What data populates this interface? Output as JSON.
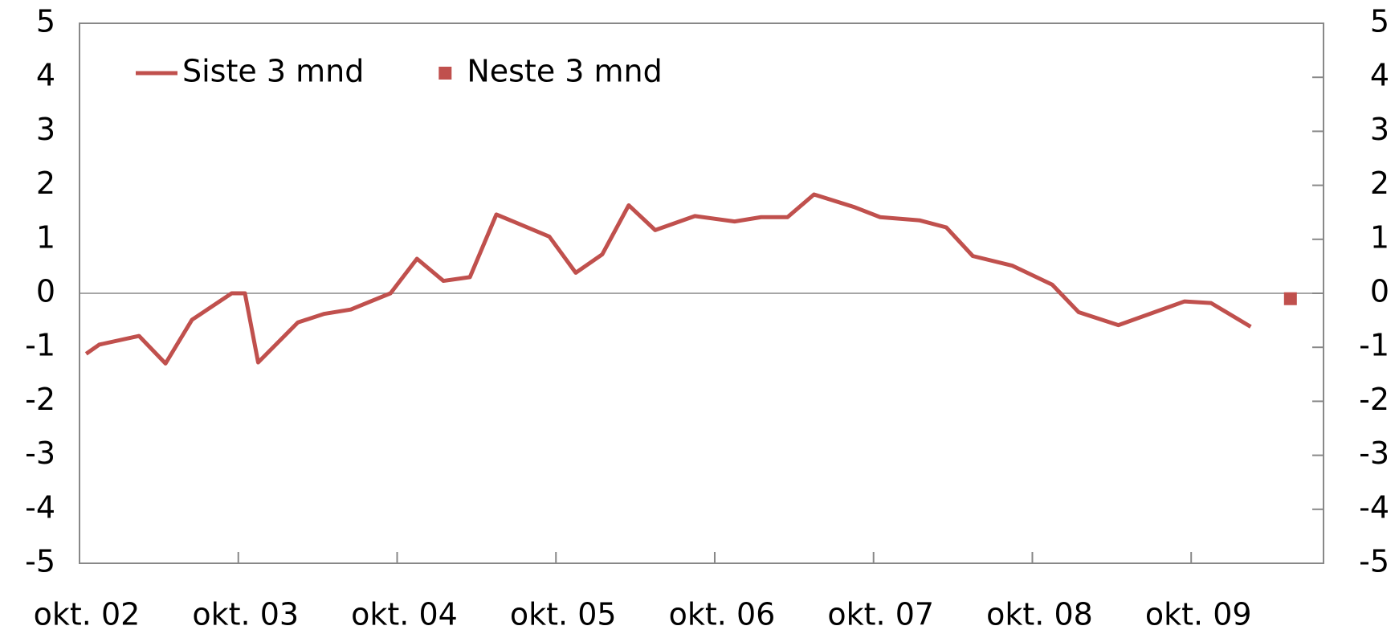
{
  "chart_data": {
    "type": "line",
    "series": [
      {
        "name": "Siste 3 mnd",
        "color": "#c0504d",
        "style": "line",
        "x": [
          "2002-10",
          "2002-11",
          "2003-02",
          "2003-04",
          "2003-06",
          "2003-09",
          "2003-10",
          "2003-11",
          "2004-02",
          "2004-04",
          "2004-06",
          "2004-09",
          "2004-11",
          "2005-01",
          "2005-03",
          "2005-05",
          "2005-09",
          "2005-11",
          "2006-01",
          "2006-03",
          "2006-05",
          "2006-08",
          "2006-11",
          "2007-01",
          "2007-03",
          "2007-05",
          "2007-08",
          "2007-10",
          "2008-01",
          "2008-03",
          "2008-05",
          "2008-08",
          "2008-11",
          "2009-01",
          "2009-04",
          "2009-09",
          "2009-11",
          "2010-02"
        ],
        "values": [
          -1.12,
          -0.95,
          -0.79,
          -1.3,
          -0.49,
          0,
          0,
          -1.28,
          -0.54,
          -0.38,
          -0.3,
          0,
          0.64,
          0.23,
          0.3,
          1.46,
          1.05,
          0.38,
          0.72,
          1.63,
          1.17,
          1.43,
          1.33,
          1.41,
          1.41,
          1.83,
          1.6,
          1.41,
          1.35,
          1.22,
          0.69,
          0.51,
          0.16,
          -0.35,
          -0.59,
          -0.15,
          -0.18,
          -0.62
        ]
      },
      {
        "name": "Neste 3 mnd",
        "color": "#c0504d",
        "style": "marker",
        "x": [
          "2010-05"
        ],
        "values": [
          -0.1
        ]
      }
    ],
    "xlim": [
      "2002-10",
      "2010-08"
    ],
    "xticks": [
      {
        "value": "2002-10",
        "label": "okt. 02"
      },
      {
        "value": "2003-10",
        "label": "okt. 03"
      },
      {
        "value": "2004-10",
        "label": "okt. 04"
      },
      {
        "value": "2005-10",
        "label": "okt. 05"
      },
      {
        "value": "2006-10",
        "label": "okt. 06"
      },
      {
        "value": "2007-10",
        "label": "okt. 07"
      },
      {
        "value": "2008-10",
        "label": "okt. 08"
      },
      {
        "value": "2009-10",
        "label": "okt. 09"
      }
    ],
    "ylim": [
      -5,
      5
    ],
    "yticks": [
      -5,
      -4,
      -3,
      -2,
      -1,
      0,
      1,
      2,
      3,
      4,
      5
    ],
    "y2lim": [
      -5,
      5
    ],
    "y2ticks": [
      -5,
      -4,
      -3,
      -2,
      -1,
      0,
      1,
      2,
      3,
      4,
      5
    ],
    "legend": "top-left"
  }
}
